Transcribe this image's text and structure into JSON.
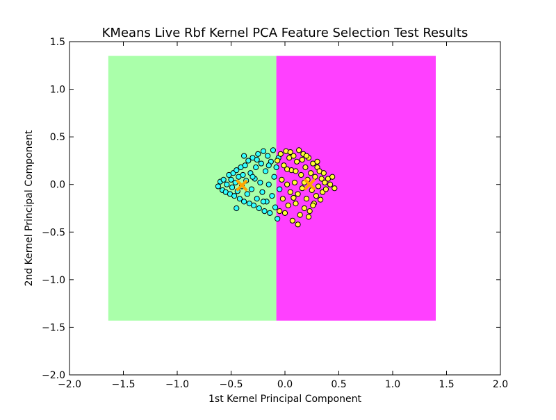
{
  "chart_data": {
    "type": "scatter",
    "title": "KMeans Live Rbf Kernel PCA Feature Selection Test Results",
    "xlabel": "1st Kernel Principal Component",
    "ylabel": "2nd Kernel Principal Component",
    "xlim": [
      -2.0,
      2.0
    ],
    "ylim": [
      -2.0,
      1.5
    ],
    "xticks": [
      -2.0,
      -1.5,
      -1.0,
      -0.5,
      0.0,
      0.5,
      1.0,
      1.5,
      2.0
    ],
    "yticks": [
      -2.0,
      -1.5,
      -1.0,
      -0.5,
      0.0,
      0.5,
      1.0,
      1.5
    ],
    "xtick_labels": [
      "−2.0",
      "−1.5",
      "−1.0",
      "−0.5",
      "0.0",
      "0.5",
      "1.0",
      "1.5",
      "2.0"
    ],
    "ytick_labels": [
      "−2.0",
      "−1.5",
      "−1.0",
      "−0.5",
      "0.0",
      "0.5",
      "1.0",
      "1.5"
    ],
    "grid": false,
    "legend": "none",
    "decision_regions": [
      {
        "cluster": 0,
        "color": "#aaffaa",
        "x_range": [
          -1.64,
          -0.08
        ],
        "y_range": [
          -1.43,
          1.35
        ]
      },
      {
        "cluster": 1,
        "color": "#ff40ff",
        "x_range": [
          -0.08,
          1.4
        ],
        "y_range": [
          -1.43,
          1.35
        ]
      }
    ],
    "series": [
      {
        "color": "#33ffff",
        "points": [
          [
            -0.62,
            -0.02
          ],
          [
            -0.6,
            0.03
          ],
          [
            -0.58,
            -0.06
          ],
          [
            -0.57,
            0.05
          ],
          [
            -0.55,
            -0.08
          ],
          [
            -0.54,
            0.0
          ],
          [
            -0.52,
            0.1
          ],
          [
            -0.51,
            -0.1
          ],
          [
            -0.5,
            0.05
          ],
          [
            -0.49,
            -0.03
          ],
          [
            -0.48,
            0.12
          ],
          [
            -0.47,
            -0.12
          ],
          [
            -0.46,
            0.02
          ],
          [
            -0.45,
            0.15
          ],
          [
            -0.44,
            -0.07
          ],
          [
            -0.43,
            0.08
          ],
          [
            -0.42,
            -0.15
          ],
          [
            -0.41,
            0.18
          ],
          [
            -0.4,
            -0.02
          ],
          [
            -0.39,
            0.1
          ],
          [
            -0.38,
            -0.18
          ],
          [
            -0.37,
            0.2
          ],
          [
            -0.36,
            0.04
          ],
          [
            -0.35,
            -0.1
          ],
          [
            -0.34,
            0.25
          ],
          [
            -0.33,
            -0.2
          ],
          [
            -0.32,
            0.12
          ],
          [
            -0.31,
            -0.05
          ],
          [
            -0.3,
            0.28
          ],
          [
            -0.29,
            -0.22
          ],
          [
            -0.28,
            0.06
          ],
          [
            -0.27,
            0.18
          ],
          [
            -0.26,
            -0.15
          ],
          [
            -0.25,
            0.32
          ],
          [
            -0.24,
            -0.25
          ],
          [
            -0.23,
            0.02
          ],
          [
            -0.22,
            0.22
          ],
          [
            -0.21,
            -0.08
          ],
          [
            -0.2,
            0.35
          ],
          [
            -0.19,
            -0.28
          ],
          [
            -0.18,
            0.14
          ],
          [
            -0.17,
            -0.18
          ],
          [
            -0.16,
            0.3
          ],
          [
            -0.15,
            0.0
          ],
          [
            -0.14,
            -0.3
          ],
          [
            -0.13,
            0.24
          ],
          [
            -0.12,
            -0.12
          ],
          [
            -0.11,
            0.36
          ],
          [
            -0.1,
            0.08
          ],
          [
            -0.09,
            -0.24
          ],
          [
            -0.08,
            0.18
          ],
          [
            -0.07,
            -0.36
          ],
          [
            -0.06,
            0.28
          ],
          [
            -0.05,
            -0.05
          ],
          [
            -0.45,
            -0.25
          ],
          [
            -0.38,
            0.3
          ],
          [
            -0.3,
            0.08
          ],
          [
            -0.26,
            0.26
          ],
          [
            -0.2,
            -0.18
          ],
          [
            -0.15,
            0.2
          ]
        ]
      },
      {
        "color": "#ffff33",
        "points": [
          [
            -0.07,
            0.25
          ],
          [
            -0.05,
            -0.28
          ],
          [
            -0.04,
            0.32
          ],
          [
            -0.03,
            0.05
          ],
          [
            -0.02,
            -0.15
          ],
          [
            -0.01,
            0.2
          ],
          [
            0.0,
            -0.3
          ],
          [
            0.01,
            0.35
          ],
          [
            0.02,
            0.0
          ],
          [
            0.03,
            -0.22
          ],
          [
            0.04,
            0.28
          ],
          [
            0.05,
            -0.08
          ],
          [
            0.06,
            0.15
          ],
          [
            0.07,
            -0.38
          ],
          [
            0.08,
            0.3
          ],
          [
            0.09,
            0.02
          ],
          [
            0.1,
            -0.2
          ],
          [
            0.11,
            0.24
          ],
          [
            0.12,
            -0.1
          ],
          [
            0.13,
            0.36
          ],
          [
            0.14,
            -0.32
          ],
          [
            0.15,
            0.1
          ],
          [
            0.16,
            -0.04
          ],
          [
            0.17,
            0.32
          ],
          [
            0.18,
            -0.25
          ],
          [
            0.19,
            0.18
          ],
          [
            0.2,
            -0.15
          ],
          [
            0.21,
            0.05
          ],
          [
            0.22,
            0.28
          ],
          [
            0.23,
            -0.28
          ],
          [
            0.24,
            0.12
          ],
          [
            0.25,
            -0.06
          ],
          [
            0.26,
            0.22
          ],
          [
            0.27,
            -0.2
          ],
          [
            0.28,
            0.08
          ],
          [
            0.29,
            -0.12
          ],
          [
            0.3,
            0.18
          ],
          [
            0.31,
            -0.02
          ],
          [
            0.32,
            0.14
          ],
          [
            0.33,
            -0.16
          ],
          [
            0.34,
            0.06
          ],
          [
            0.35,
            -0.08
          ],
          [
            0.36,
            0.12
          ],
          [
            0.37,
            0.02
          ],
          [
            0.38,
            -0.05
          ],
          [
            0.4,
            0.06
          ],
          [
            0.42,
            0.0
          ],
          [
            0.44,
            0.08
          ],
          [
            0.46,
            -0.04
          ],
          [
            0.05,
            0.34
          ],
          [
            0.1,
            0.14
          ],
          [
            0.18,
            0.02
          ],
          [
            0.26,
            -0.22
          ],
          [
            0.12,
            -0.42
          ],
          [
            0.02,
            0.16
          ],
          [
            0.2,
            0.3
          ],
          [
            0.3,
            0.24
          ],
          [
            0.08,
            -0.14
          ],
          [
            0.16,
            0.26
          ],
          [
            0.22,
            -0.34
          ]
        ]
      }
    ],
    "centroids": {
      "color": "#ffa500",
      "marker": "x",
      "points": [
        [
          -0.4,
          -0.01
        ],
        [
          0.23,
          0.0
        ]
      ]
    }
  }
}
